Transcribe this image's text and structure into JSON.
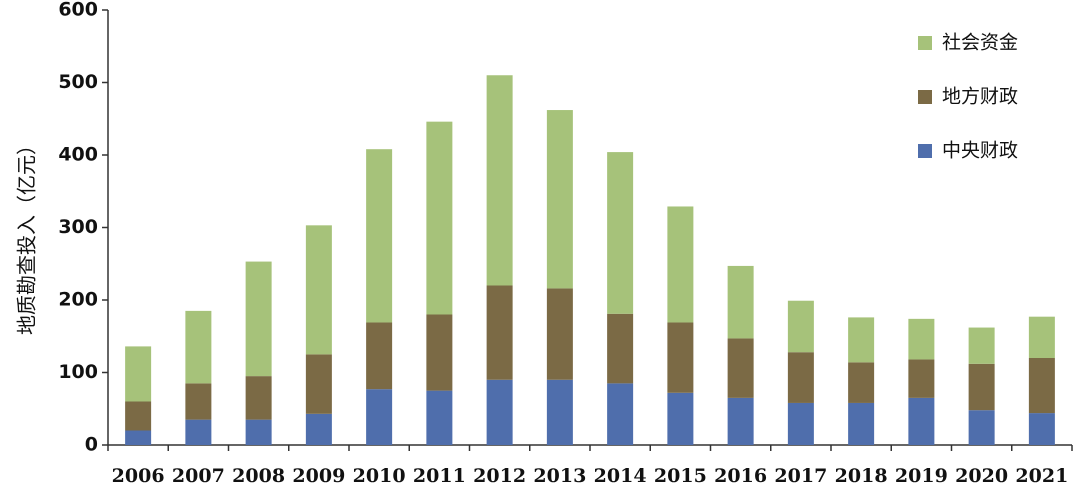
{
  "chart_data": {
    "type": "bar",
    "stacked": true,
    "title": "",
    "xlabel": "",
    "ylabel": "地质勘查投入（亿元）",
    "ylim": [
      0,
      600
    ],
    "yticks": [
      0,
      100,
      200,
      300,
      400,
      500,
      600
    ],
    "grid": false,
    "legend_position": "top-right",
    "categories": [
      "2006",
      "2007",
      "2008",
      "2009",
      "2010",
      "2011",
      "2012",
      "2013",
      "2014",
      "2015",
      "2016",
      "2017",
      "2018",
      "2019",
      "2020",
      "2021"
    ],
    "series": [
      {
        "name": "中央财政",
        "color": "#4f6eac",
        "values": [
          20,
          35,
          35,
          43,
          77,
          75,
          90,
          90,
          85,
          72,
          65,
          58,
          58,
          65,
          48,
          44
        ]
      },
      {
        "name": "地方财政",
        "color": "#7b6a45",
        "values": [
          40,
          50,
          60,
          82,
          92,
          105,
          130,
          126,
          96,
          97,
          82,
          70,
          56,
          53,
          64,
          76
        ]
      },
      {
        "name": "社会资金",
        "color": "#a6c27a",
        "values": [
          76,
          100,
          158,
          178,
          239,
          266,
          290,
          246,
          223,
          160,
          100,
          71,
          62,
          56,
          50,
          57
        ]
      }
    ],
    "legend_order": [
      "社会资金",
      "地方财政",
      "中央财政"
    ]
  }
}
